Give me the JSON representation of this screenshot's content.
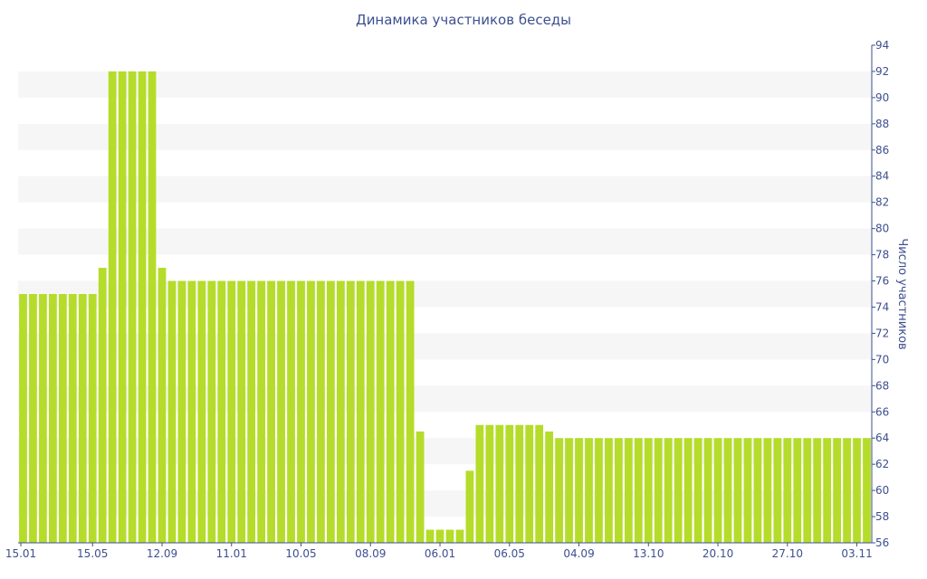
{
  "chart_data": {
    "type": "bar",
    "title": "Динамика участников беседы",
    "ylabel": "Число участников",
    "xlabel": "",
    "ylim": [
      56,
      94
    ],
    "y_ticks": [
      56,
      58,
      60,
      62,
      64,
      66,
      68,
      70,
      72,
      74,
      76,
      78,
      80,
      82,
      84,
      86,
      88,
      90,
      92,
      94
    ],
    "x_tick_labels": [
      {
        "label": "15.01",
        "index": 0
      },
      {
        "label": "15.05",
        "index": 7
      },
      {
        "label": "12.09",
        "index": 14
      },
      {
        "label": "11.01",
        "index": 21
      },
      {
        "label": "10.05",
        "index": 28
      },
      {
        "label": "08.09",
        "index": 35
      },
      {
        "label": "06.01",
        "index": 42
      },
      {
        "label": "06.05",
        "index": 49
      },
      {
        "label": "04.09",
        "index": 56
      },
      {
        "label": "13.10",
        "index": 63
      },
      {
        "label": "20.10",
        "index": 70
      },
      {
        "label": "27.10",
        "index": 77
      },
      {
        "label": "03.11",
        "index": 84
      }
    ],
    "y_axis_position": "right",
    "grid": "alternating horizontal bands",
    "bar_color": "#b5dc2a",
    "band_color": "#f6f6f6",
    "text_color": "#3d4f8f",
    "values": [
      75,
      75,
      75,
      75,
      75,
      75,
      75,
      75,
      77,
      92,
      92,
      92,
      92,
      92,
      77,
      76,
      76,
      76,
      76,
      76,
      76,
      76,
      76,
      76,
      76,
      76,
      76,
      76,
      76,
      76,
      76,
      76,
      76,
      76,
      76,
      76,
      76,
      76,
      76,
      76,
      64.5,
      57,
      57,
      57,
      57,
      61.5,
      65,
      65,
      65,
      65,
      65,
      65,
      65,
      64.5,
      64,
      64,
      64,
      64,
      64,
      64,
      64,
      64,
      64,
      64,
      64,
      64,
      64,
      64,
      64,
      64,
      64,
      64,
      64,
      64,
      64,
      64,
      64,
      64,
      64,
      64,
      64,
      64,
      64,
      64,
      64,
      64
    ]
  }
}
